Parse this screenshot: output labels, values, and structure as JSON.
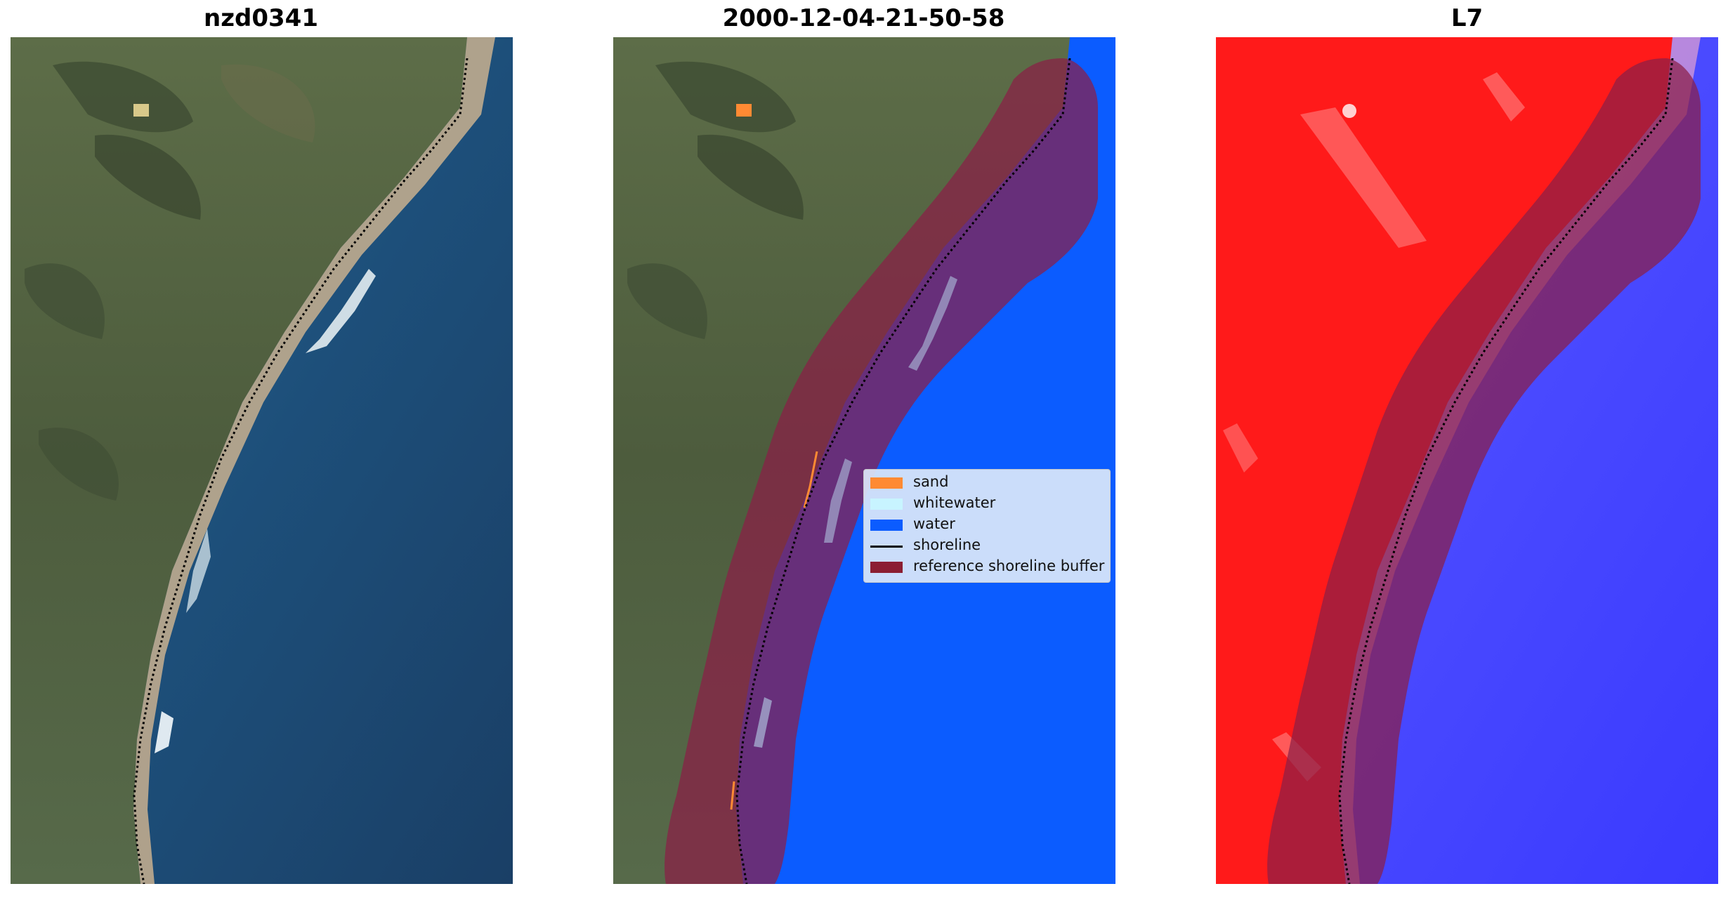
{
  "panels": [
    {
      "title": "nzd0341"
    },
    {
      "title": "2000-12-04-21-50-58"
    },
    {
      "title": "L7"
    }
  ],
  "legend": {
    "items": [
      {
        "label": "sand",
        "kind": "patch",
        "color": "#ff8a33"
      },
      {
        "label": "whitewater",
        "kind": "patch",
        "color": "#c8f4ff"
      },
      {
        "label": "water",
        "kind": "patch",
        "color": "#0b5cff"
      },
      {
        "label": "shoreline",
        "kind": "line",
        "color": "#000000"
      },
      {
        "label": "reference shoreline buffer",
        "kind": "patch",
        "color": "#8b1e32"
      }
    ]
  },
  "colors": {
    "land": "#4a5a3a",
    "sea": "#1d4f7a",
    "beach": "#c9b08f",
    "water_class": "#0b5cff",
    "buffer": "#8b1e46",
    "index_land": "#ff1a1a",
    "index_water": "#3333ff"
  }
}
